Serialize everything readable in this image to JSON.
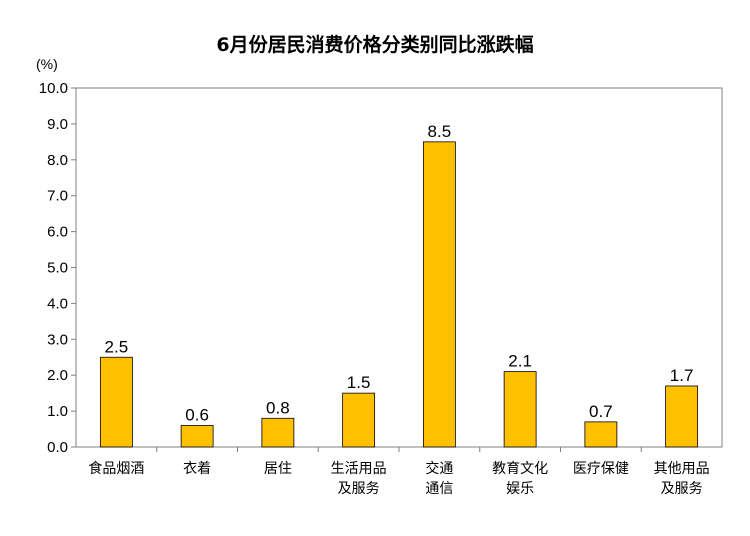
{
  "chart_data": {
    "type": "bar",
    "title": "6月份居民消费价格分类别同比涨跌幅",
    "ylabel": "(%)",
    "xlabel": "",
    "ylim": [
      0,
      10
    ],
    "ytick_step": 1,
    "ytick_labels": [
      "0.0",
      "1.0",
      "2.0",
      "3.0",
      "4.0",
      "5.0",
      "6.0",
      "7.0",
      "8.0",
      "9.0",
      "10.0"
    ],
    "categories": [
      [
        "食品烟酒"
      ],
      [
        "衣着"
      ],
      [
        "居住"
      ],
      [
        "生活用品",
        "及服务"
      ],
      [
        "交通",
        "通信"
      ],
      [
        "教育文化",
        "娱乐"
      ],
      [
        "医疗保健"
      ],
      [
        "其他用品",
        "及服务"
      ]
    ],
    "values": [
      2.5,
      0.6,
      0.8,
      1.5,
      8.5,
      2.1,
      0.7,
      1.7
    ],
    "value_labels": [
      "2.5",
      "0.6",
      "0.8",
      "1.5",
      "8.5",
      "2.1",
      "0.7",
      "1.7"
    ],
    "bar_color": "#FFC000",
    "bar_edge_color": "#000000",
    "grid": false,
    "legend": "none"
  }
}
